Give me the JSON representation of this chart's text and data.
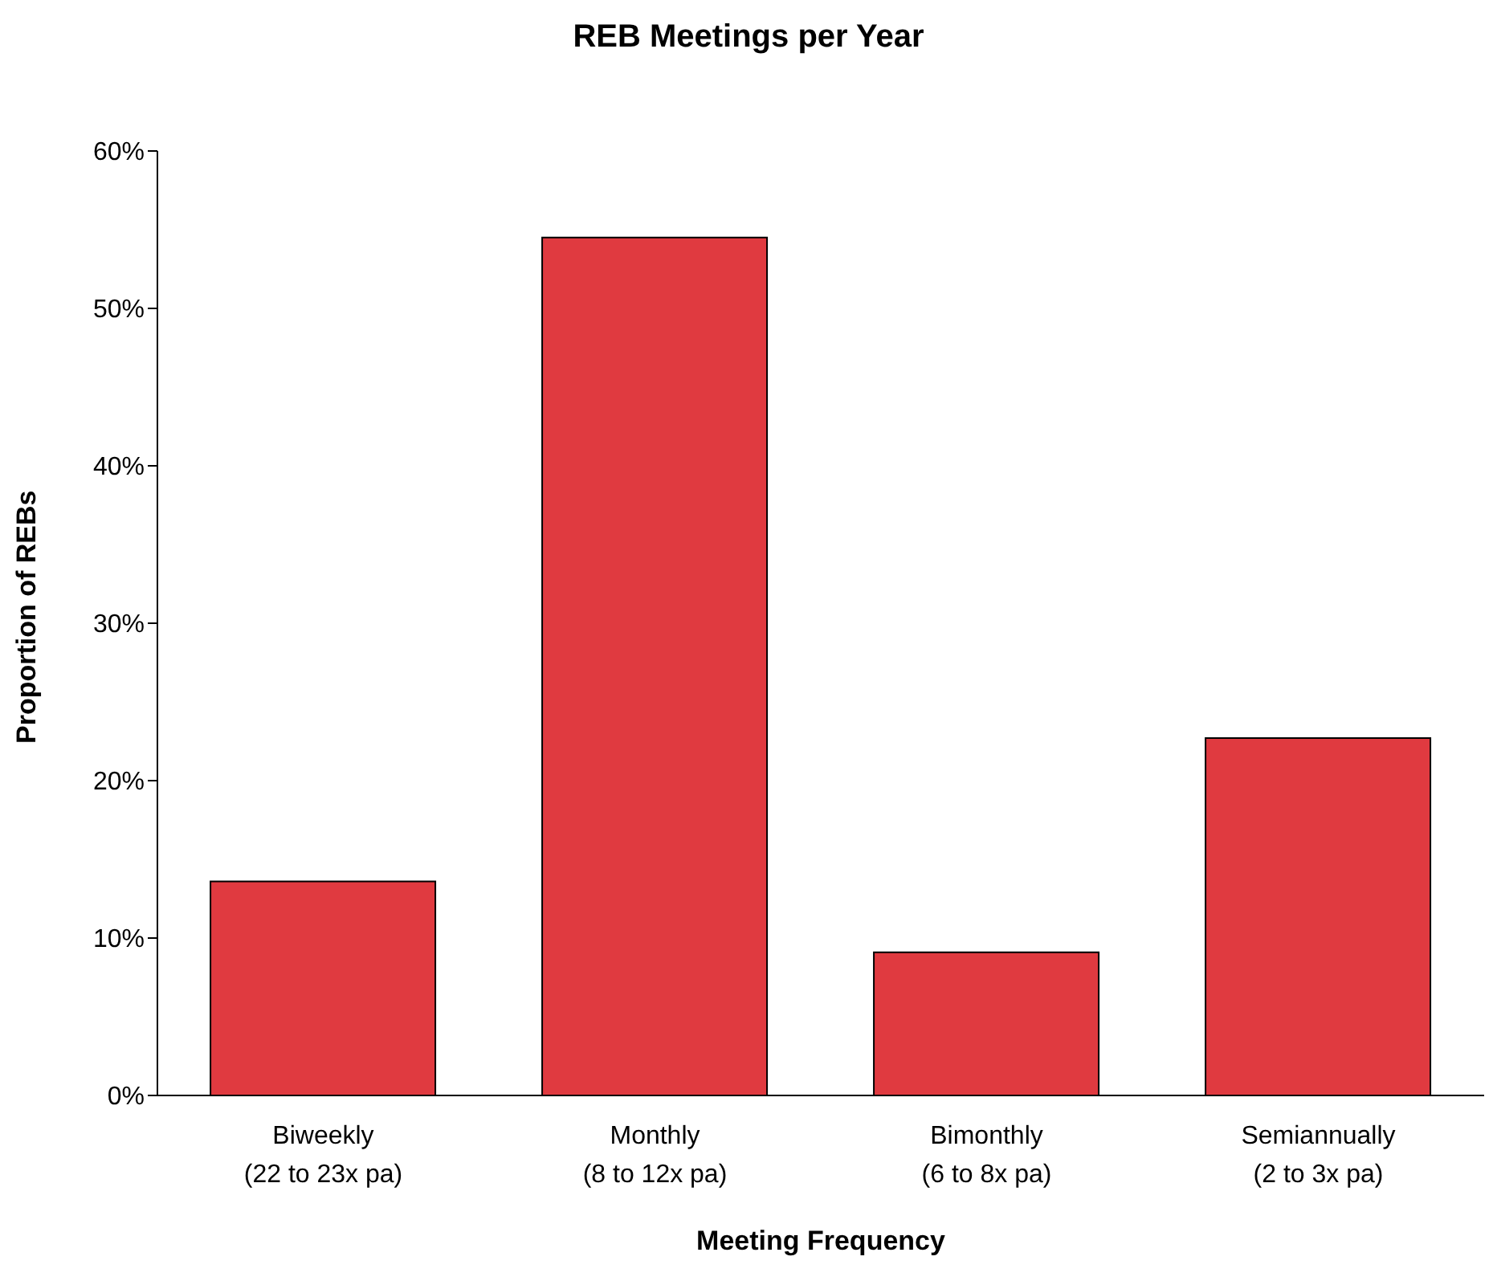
{
  "chart_data": {
    "type": "bar",
    "title": "REB Meetings per Year",
    "xlabel": "Meeting Frequency",
    "ylabel": "Proportion of REBs",
    "categories": [
      "Biweekly\n(22 to 23x pa)",
      "Monthly\n(8 to 12x pa)",
      "Bimonthly\n(6 to 8x pa)",
      "Semiannually\n(2 to 3x pa)"
    ],
    "values": [
      13.6,
      54.5,
      9.1,
      22.7
    ],
    "color": "#e03a40",
    "ylim": [
      0,
      60
    ],
    "yticks": [
      {
        "value": 0,
        "label": "0%"
      },
      {
        "value": 10,
        "label": "10%"
      },
      {
        "value": 20,
        "label": "20%"
      },
      {
        "value": 30,
        "label": "30%"
      },
      {
        "value": 40,
        "label": "40%"
      },
      {
        "value": 50,
        "label": "50%"
      },
      {
        "value": 60,
        "label": "60%"
      }
    ],
    "grid": false,
    "legend": false
  }
}
